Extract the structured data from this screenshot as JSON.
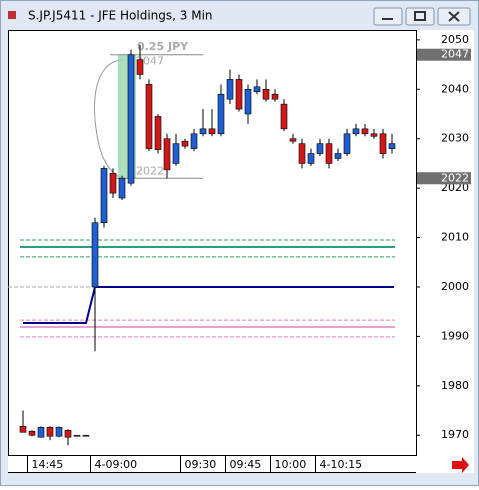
{
  "window_title": "S.JP.J5411 - JFE Holdings, 3 Min",
  "chart_data": {
    "type": "candlestick",
    "categories": [
      null,
      "14:45",
      null,
      null,
      null,
      null,
      null,
      null,
      "4-09:00",
      null,
      null,
      null,
      null,
      null,
      null,
      null,
      null,
      null,
      "09:30",
      null,
      null,
      null,
      null,
      "09:45",
      null,
      null,
      null,
      null,
      "10:00",
      null,
      null,
      null,
      null,
      "4-10:15",
      null,
      null,
      null,
      null,
      null,
      null,
      null,
      null
    ],
    "open": [
      1971.8,
      1970.8,
      1969.6,
      1971.6,
      1969.8,
      1971,
      1970,
      1970,
      2000,
      2013,
      2023,
      2018,
      2021,
      2046,
      2041,
      2034.5,
      2030,
      2025,
      2029.5,
      2028,
      2031,
      2032,
      2031,
      2038,
      2042,
      2035,
      2039.5,
      2040,
      2039,
      2037,
      2030,
      2029,
      2025,
      2027,
      2029,
      2026,
      2027,
      2031,
      2032,
      2031,
      2031,
      2028
    ],
    "high": [
      1975,
      1971,
      1971.8,
      1971.8,
      1971.8,
      1971.2,
      1970,
      1970,
      2014,
      2024.5,
      2024,
      2022.5,
      2048,
      2049,
      2042,
      2035,
      2031,
      2031,
      2030,
      2032,
      2036,
      2036,
      2041,
      2044,
      2043,
      2041,
      2042,
      2042,
      2040,
      2038,
      2031,
      2030,
      2028,
      2030,
      2030,
      2028,
      2032,
      2033,
      2033,
      2032,
      2032,
      2031
    ],
    "low": [
      1970.6,
      1969.8,
      1969.5,
      1969,
      1969.6,
      1968,
      1970,
      1970,
      1987,
      2012,
      2018,
      2017.6,
      2020.5,
      2042,
      2027.5,
      2027,
      2022,
      2024.5,
      2028,
      2027.5,
      2030.5,
      2030.5,
      2030.5,
      2037,
      2035.5,
      2033,
      2039,
      2037.5,
      2037.5,
      2031.5,
      2029,
      2024,
      2024.5,
      2026.5,
      2024,
      2025.5,
      2026.5,
      2030.5,
      2030.5,
      2030,
      2026,
      2027
    ],
    "close": [
      1970.6,
      1970,
      1971.6,
      1969.8,
      1971.6,
      1969.6,
      1970,
      1970,
      2013,
      2024,
      2019,
      2022,
      2047,
      2043,
      2028,
      2027.8,
      2023.7,
      2029,
      2028.5,
      2031,
      2032,
      2031,
      2039,
      2042,
      2036,
      2040,
      2040.5,
      2038,
      2038,
      2032,
      2029.5,
      2025,
      2027,
      2029,
      2025,
      2027,
      2031,
      2032,
      2031,
      2030.5,
      2027,
      2029
    ],
    "up_color": "#1f5fd0",
    "down_color": "#d01818",
    "ylim": [
      1966,
      2052
    ],
    "yticks": [
      1970,
      1980,
      1990,
      2000,
      2010,
      2020,
      2030,
      2040,
      2050
    ],
    "levels": [
      {
        "value": 2009.5,
        "color": "#2aa060",
        "style": "dashed"
      },
      {
        "value": 2008.1,
        "color": "#2aa080",
        "style": "solid"
      },
      {
        "value": 2006.1,
        "color": "#2aa060",
        "style": "dashed"
      },
      {
        "value": 1993.3,
        "color": "#e080c0",
        "style": "dashed"
      },
      {
        "value": 1991.9,
        "color": "#e8a0d0",
        "style": "solid"
      },
      {
        "value": 1989.9,
        "color": "#e080c0",
        "style": "dashed"
      }
    ],
    "prior_level": 1992.7,
    "current_level": 2000,
    "level_color": "#00008b",
    "measure": {
      "high": 2047,
      "low": 2022,
      "label": "0.25 JPY"
    }
  }
}
